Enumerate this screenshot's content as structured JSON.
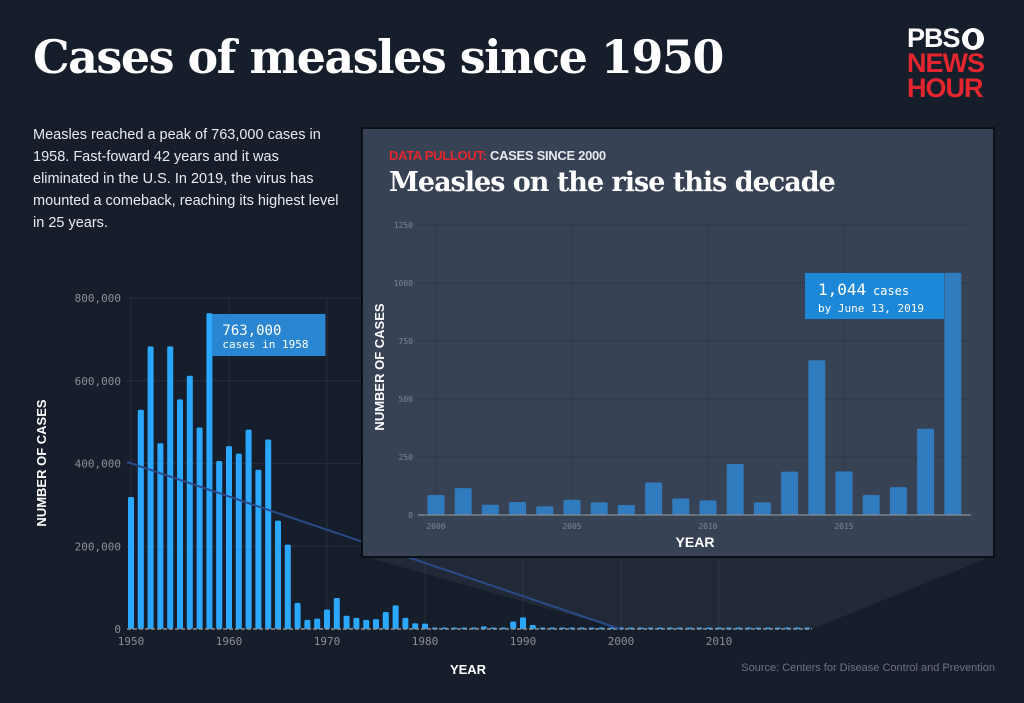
{
  "header": {
    "title": "Cases of measles since  1950",
    "intro": "Measles reached a peak of 763,000 cases in 1958. Fast-foward 42 years and it was eliminated in the U.S. In 2019, the virus has mounted a comeback, reaching its highest level in 25 years.",
    "logo": {
      "line1": "PBS",
      "line2": "NEWS",
      "line3": "HOUR"
    }
  },
  "colors": {
    "background": "#161e2c",
    "main_bars": "#2aa8ff",
    "inset_bars": "#2f7bbd",
    "callout": "#2a86d0",
    "inset_background": "#374354",
    "accent_red": "#e5262e",
    "trend_line": "#2a4a8a"
  },
  "source": "Source: Centers for Disease Control and Prevention",
  "chart_data": [
    {
      "type": "bar",
      "xlabel": "YEAR",
      "ylabel": "NUMBER OF CASES",
      "ylim": [
        0,
        800000
      ],
      "xlim": [
        1950,
        2019
      ],
      "grid": true,
      "yticks": [
        "0",
        "200,000",
        "400,000",
        "600,000",
        "800,000"
      ],
      "ytick_values": [
        0,
        200000,
        400000,
        600000,
        800000
      ],
      "xticks": [
        "1950",
        "1960",
        "1970",
        "1980",
        "1990",
        "2000",
        "2010"
      ],
      "x": [
        1950,
        1951,
        1952,
        1953,
        1954,
        1955,
        1956,
        1957,
        1958,
        1959,
        1960,
        1961,
        1962,
        1963,
        1964,
        1965,
        1966,
        1967,
        1968,
        1969,
        1970,
        1971,
        1972,
        1973,
        1974,
        1975,
        1976,
        1977,
        1978,
        1979,
        1980,
        1981,
        1982,
        1983,
        1984,
        1985,
        1986,
        1987,
        1988,
        1989,
        1990,
        1991,
        1992,
        1993,
        1994,
        1995,
        1996,
        1997,
        1998,
        1999,
        2000,
        2001,
        2002,
        2003,
        2004,
        2005,
        2006,
        2007,
        2008,
        2009,
        2010,
        2011,
        2012,
        2013,
        2014,
        2015,
        2016,
        2017,
        2018,
        2019
      ],
      "values": [
        319000,
        530000,
        683000,
        449000,
        683000,
        555000,
        612000,
        487000,
        763000,
        406000,
        442000,
        424000,
        482000,
        385000,
        458000,
        262000,
        204000,
        63000,
        22000,
        25000,
        47000,
        75000,
        32000,
        27000,
        22000,
        24000,
        41000,
        57000,
        27000,
        14000,
        13000,
        3000,
        1700,
        1500,
        2600,
        2800,
        6300,
        3700,
        3400,
        18000,
        28000,
        9600,
        2200,
        312,
        963,
        309,
        508,
        138,
        100,
        100,
        86,
        116,
        44,
        56,
        37,
        66,
        55,
        43,
        140,
        71,
        63,
        220,
        55,
        187,
        667,
        188,
        86,
        120,
        372,
        1044
      ],
      "annotation": {
        "value": "763,000",
        "text": "cases in 1958"
      }
    },
    {
      "type": "bar",
      "kicker_label": "DATA PULLOUT:",
      "kicker_text": "CASES SINCE 2000",
      "title": "Measles on the rise this decade",
      "xlabel": "YEAR",
      "ylabel": "NUMBER OF CASES",
      "ylim": [
        0,
        1250
      ],
      "grid": true,
      "yticks": [
        "0",
        "250",
        "500",
        "750",
        "1000",
        "1250"
      ],
      "ytick_values": [
        0,
        250,
        500,
        750,
        1000,
        1250
      ],
      "xticks": [
        "2000",
        "2005",
        "2010",
        "2015"
      ],
      "x": [
        2000,
        2001,
        2002,
        2003,
        2004,
        2005,
        2006,
        2007,
        2008,
        2009,
        2010,
        2011,
        2012,
        2013,
        2014,
        2015,
        2016,
        2017,
        2018,
        2019
      ],
      "values": [
        86,
        116,
        44,
        56,
        37,
        66,
        55,
        43,
        140,
        71,
        63,
        220,
        55,
        187,
        667,
        188,
        86,
        120,
        372,
        1044
      ],
      "annotation": {
        "value": "1,044",
        "unit": "cases",
        "text": "by June 13, 2019"
      }
    }
  ]
}
